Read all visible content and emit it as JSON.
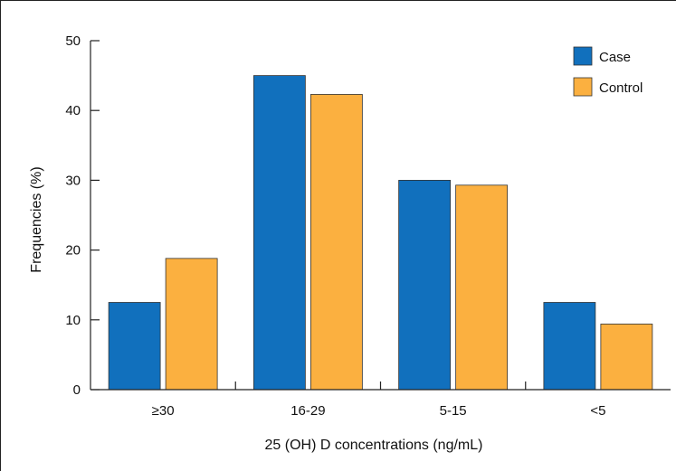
{
  "chart_data": {
    "type": "bar",
    "title": "",
    "xlabel": "25 (OH) D concentrations (ng/mL)",
    "ylabel": "Frequencies (%)",
    "categories": [
      "≥30",
      "16-29",
      "5-15",
      "<5"
    ],
    "ylim": [
      0,
      50
    ],
    "yticks": [
      0,
      10,
      20,
      30,
      40,
      50
    ],
    "grid": false,
    "legend": "top-right",
    "series": [
      {
        "name": "Case",
        "color": "#1170BD",
        "values": [
          12.5,
          45,
          30,
          12.5
        ]
      },
      {
        "name": "Control",
        "color": "#FBB040",
        "values": [
          18.8,
          42.3,
          29.3,
          9.4
        ]
      }
    ]
  }
}
